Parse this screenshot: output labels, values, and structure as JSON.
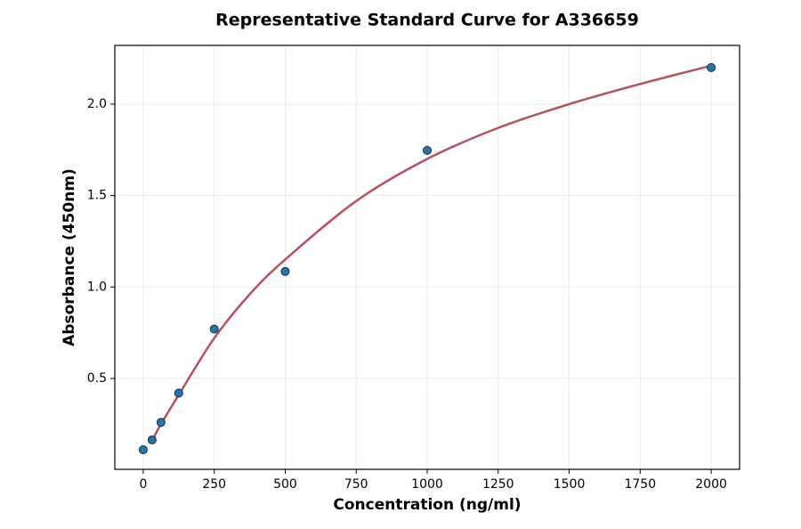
{
  "chart_data": {
    "type": "scatter",
    "title": "Representative Standard Curve for A336659",
    "xlabel": "Concentration (ng/ml)",
    "ylabel": "Absorbance (450nm)",
    "xlim": [
      -100,
      2100
    ],
    "ylim": [
      0.003,
      2.321
    ],
    "xticks": [
      0,
      250,
      500,
      750,
      1000,
      1250,
      1500,
      1750,
      2000
    ],
    "yticks": [
      0.5,
      {
        "value": 1,
        "label": "1.0"
      },
      1.5,
      {
        "value": 2,
        "label": "2.0"
      }
    ],
    "grid": true,
    "series": [
      {
        "type": "line",
        "color": "#b5525f",
        "x": [
          31.25,
          62.5,
          125,
          250,
          375,
          500,
          750,
          1000,
          1250,
          1500,
          1750,
          2000
        ],
        "values": [
          0.16,
          0.25,
          0.41,
          0.72,
          0.96,
          1.15,
          1.47,
          1.7,
          1.87,
          2.0,
          2.11,
          2.21
        ]
      },
      {
        "type": "scatter",
        "color": "#1f77b4",
        "x": [
          0,
          31.25,
          62.5,
          125,
          250,
          500,
          1000,
          2000
        ],
        "values": [
          0.11,
          0.164,
          0.26,
          0.42,
          0.77,
          1.085,
          1.747,
          2.2
        ]
      }
    ]
  }
}
